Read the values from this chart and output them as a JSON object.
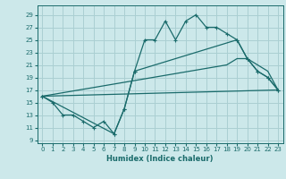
{
  "xlabel": "Humidex (Indice chaleur)",
  "ylabel": "",
  "background_color": "#cce8ea",
  "grid_color": "#aacfd2",
  "line_color": "#1a6b6b",
  "xlim": [
    -0.5,
    23.5
  ],
  "ylim": [
    8.5,
    30.5
  ],
  "xticks": [
    0,
    1,
    2,
    3,
    4,
    5,
    6,
    7,
    8,
    9,
    10,
    11,
    12,
    13,
    14,
    15,
    16,
    17,
    18,
    19,
    20,
    21,
    22,
    23
  ],
  "yticks": [
    9,
    11,
    13,
    15,
    17,
    19,
    21,
    23,
    25,
    27,
    29
  ],
  "line1_x": [
    0,
    1,
    2,
    3,
    4,
    5,
    6,
    7,
    8,
    9,
    10,
    11,
    12,
    13,
    14,
    15,
    16,
    17,
    18,
    19,
    20,
    21,
    22,
    23
  ],
  "line1_y": [
    16,
    15,
    13,
    13,
    12,
    11,
    12,
    10,
    14,
    20,
    25,
    25,
    28,
    25,
    28,
    29,
    27,
    27,
    26,
    25,
    22,
    20,
    19,
    17
  ],
  "line2_x": [
    0,
    7,
    8,
    9,
    19,
    20,
    21,
    22,
    23
  ],
  "line2_y": [
    16,
    10,
    14,
    20,
    25,
    22,
    20,
    19,
    17
  ],
  "line3_x": [
    0,
    23
  ],
  "line3_y": [
    16,
    17
  ],
  "line4_x": [
    0,
    18,
    19,
    20,
    21,
    22,
    23
  ],
  "line4_y": [
    16,
    21,
    22,
    22,
    21,
    20,
    17
  ]
}
